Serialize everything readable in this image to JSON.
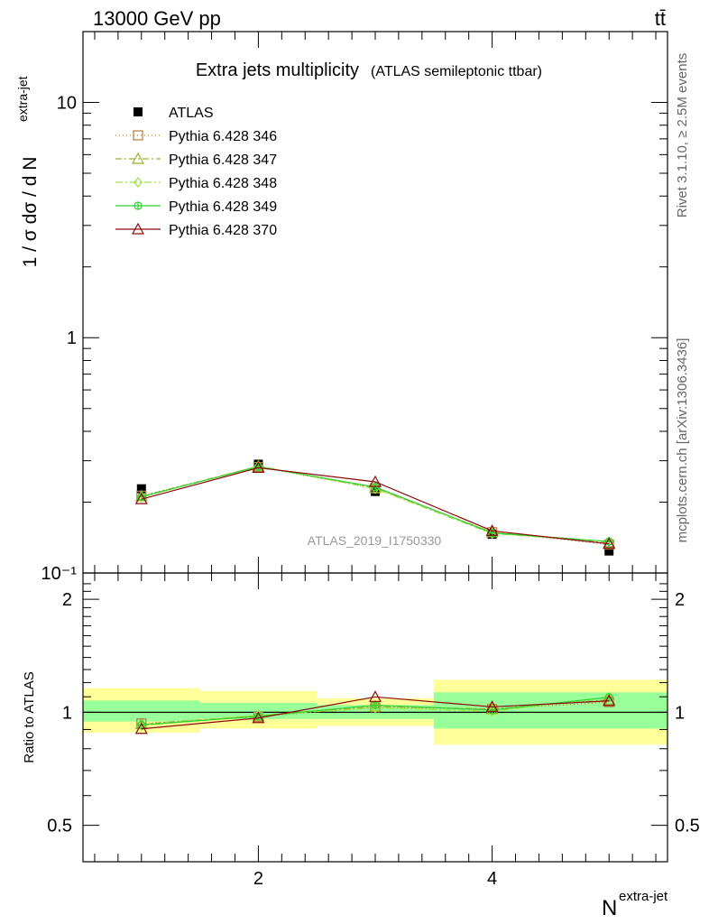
{
  "header": {
    "left": "13000 GeV pp",
    "right": "tt̄"
  },
  "side_text": {
    "rivet": "Rivet 3.1.10, ≥ 2.5M events",
    "mcplots": "mcplots.cern.ch [arXiv:1306.3436]"
  },
  "chart_data": {
    "type": "line",
    "title": "Extra jets multiplicity",
    "subtitle": "(ATLAS semileptonic ttbar)",
    "analysis_id": "ATLAS_2019_I1750330",
    "ylabel": "1 / σ dσ / d N^extra-jet",
    "ylabel_main": "1 / σ dσ / d N",
    "ylabel_sup": "extra-jet",
    "xlabel_main": "N",
    "xlabel_sup": "extra-jet",
    "ratio_ylabel": "Ratio to ATLAS",
    "x": [
      1,
      2,
      3,
      4,
      5
    ],
    "xlim": [
      0.5,
      5.5
    ],
    "ylim": [
      0.1,
      20
    ],
    "yscale": "log",
    "ratio_ylim": [
      0.4,
      2.35
    ],
    "ratio_yscale": "log",
    "x_ticks": [
      "2",
      "4"
    ],
    "y_ticks": [
      "10",
      "1",
      "10⁻¹"
    ],
    "ratio_ticks": [
      "2",
      "1",
      "0.5"
    ],
    "legend_position": "top-left",
    "data": {
      "name": "ATLAS",
      "values": [
        0.228,
        0.29,
        0.222,
        0.146,
        0.124
      ],
      "color": "#000000"
    },
    "bands": [
      {
        "x_lo": 0.5,
        "x_hi": 1.5,
        "total": [
          0.883,
          1.16
        ],
        "stat": [
          0.945,
          1.075
        ]
      },
      {
        "x_lo": 1.5,
        "x_hi": 2.5,
        "total": [
          0.905,
          1.14
        ],
        "stat": [
          0.96,
          1.06
        ]
      },
      {
        "x_lo": 2.5,
        "x_hi": 3.5,
        "total": [
          0.92,
          1.09
        ],
        "stat": [
          0.96,
          1.045
        ]
      },
      {
        "x_lo": 3.5,
        "x_hi": 5.5,
        "total": [
          0.82,
          1.22
        ],
        "stat": [
          0.905,
          1.13
        ]
      }
    ],
    "series": [
      {
        "name": "Pythia 6.428 346",
        "color": "#b08040",
        "dash": "1,3",
        "marker": "square-open",
        "values": [
          0.213,
          0.282,
          0.229,
          0.149,
          0.132
        ]
      },
      {
        "name": "Pythia 6.428 347",
        "color": "#9aae30",
        "dash": "7,3,2,3",
        "marker": "triangle-open",
        "values": [
          0.212,
          0.284,
          0.23,
          0.149,
          0.134
        ]
      },
      {
        "name": "Pythia 6.428 348",
        "color": "#9ae640",
        "dash": "8,3,2,3",
        "marker": "diamond-open",
        "values": [
          0.21,
          0.285,
          0.228,
          0.147,
          0.136
        ]
      },
      {
        "name": "Pythia 6.428 349",
        "color": "#30d030",
        "dash": "",
        "marker": "circle-cross",
        "values": [
          0.211,
          0.283,
          0.232,
          0.148,
          0.136
        ]
      },
      {
        "name": "Pythia 6.428 370",
        "color": "#8b0a0a",
        "dash": "",
        "marker": "triangle-open",
        "values": [
          0.206,
          0.28,
          0.244,
          0.151,
          0.133
        ]
      }
    ]
  }
}
